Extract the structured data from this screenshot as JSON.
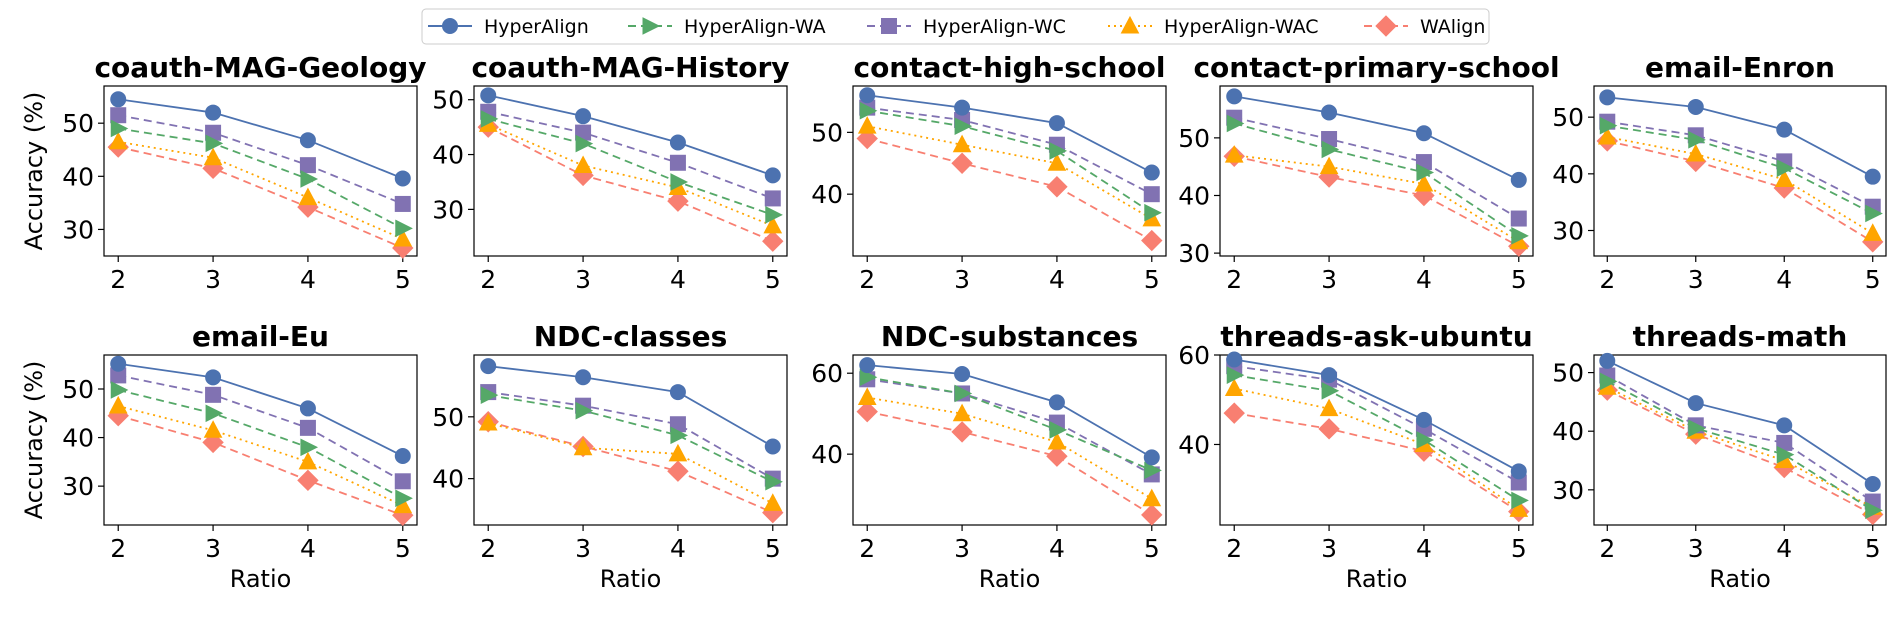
{
  "legend": {
    "position": "top-center",
    "entries": [
      {
        "name": "HyperAlign",
        "color": "#4c72b0",
        "marker": "circle",
        "line": "solid"
      },
      {
        "name": "HyperAlign-WA",
        "color": "#55a868",
        "marker": "triangle-right",
        "line": "dashed"
      },
      {
        "name": "HyperAlign-WC",
        "color": "#8172b2",
        "marker": "square",
        "line": "dashed"
      },
      {
        "name": "HyperAlign-WAC",
        "color": "#ffa500",
        "marker": "triangle-up",
        "line": "dotted"
      },
      {
        "name": "WAlign",
        "color": "#f87f71",
        "marker": "diamond",
        "line": "dashed"
      }
    ]
  },
  "chart_data": [
    {
      "type": "line",
      "title": "coauth-MAG-Geology",
      "xlabel": "",
      "ylabel": "Accuracy (%)",
      "x": [
        2,
        3,
        4,
        5
      ],
      "ylim": [
        25,
        57
      ],
      "yticks": [
        30,
        40,
        50
      ],
      "grid": false,
      "series": [
        {
          "name": "HyperAlign",
          "values": [
            54.5,
            52.0,
            46.8,
            39.6
          ]
        },
        {
          "name": "HyperAlign-WA",
          "values": [
            49.0,
            46.2,
            39.5,
            30.2
          ]
        },
        {
          "name": "HyperAlign-WC",
          "values": [
            51.5,
            48.2,
            42.1,
            34.8
          ]
        },
        {
          "name": "HyperAlign-WAC",
          "values": [
            46.5,
            43.5,
            36.0,
            28.2
          ]
        },
        {
          "name": "WAlign",
          "values": [
            45.5,
            41.5,
            34.2,
            26.5
          ]
        }
      ]
    },
    {
      "type": "line",
      "title": "coauth-MAG-History",
      "xlabel": "",
      "ylabel": "",
      "x": [
        2,
        3,
        4,
        5
      ],
      "ylim": [
        21.5,
        52.5
      ],
      "yticks": [
        30,
        40,
        50
      ],
      "grid": false,
      "series": [
        {
          "name": "HyperAlign",
          "values": [
            50.8,
            47.0,
            42.2,
            36.2
          ]
        },
        {
          "name": "HyperAlign-WA",
          "values": [
            46.5,
            42.0,
            35.0,
            29.0
          ]
        },
        {
          "name": "HyperAlign-WC",
          "values": [
            47.8,
            44.0,
            38.5,
            32.0
          ]
        },
        {
          "name": "HyperAlign-WAC",
          "values": [
            45.5,
            38.0,
            34.0,
            27.0
          ]
        },
        {
          "name": "WAlign",
          "values": [
            45.0,
            36.2,
            31.5,
            24.2
          ]
        }
      ]
    },
    {
      "type": "line",
      "title": "contact-high-school",
      "xlabel": "",
      "ylabel": "",
      "x": [
        2,
        3,
        4,
        5
      ],
      "ylim": [
        30,
        57.5
      ],
      "yticks": [
        40,
        50
      ],
      "grid": false,
      "series": [
        {
          "name": "HyperAlign",
          "values": [
            56.0,
            54.0,
            51.5,
            43.5
          ]
        },
        {
          "name": "HyperAlign-WA",
          "values": [
            53.5,
            51.0,
            47.0,
            37.0
          ]
        },
        {
          "name": "HyperAlign-WC",
          "values": [
            54.0,
            52.0,
            48.0,
            40.0
          ]
        },
        {
          "name": "HyperAlign-WAC",
          "values": [
            51.0,
            48.0,
            45.0,
            36.0
          ]
        },
        {
          "name": "WAlign",
          "values": [
            49.0,
            45.0,
            41.2,
            32.5
          ]
        }
      ]
    },
    {
      "type": "line",
      "title": "contact-primary-school",
      "xlabel": "",
      "ylabel": "",
      "x": [
        2,
        3,
        4,
        5
      ],
      "ylim": [
        29.5,
        59
      ],
      "yticks": [
        30,
        40,
        50
      ],
      "grid": false,
      "series": [
        {
          "name": "HyperAlign",
          "values": [
            57.2,
            54.4,
            50.8,
            42.7
          ]
        },
        {
          "name": "HyperAlign-WA",
          "values": [
            52.5,
            48.0,
            44.0,
            33.0
          ]
        },
        {
          "name": "HyperAlign-WC",
          "values": [
            53.5,
            49.8,
            45.8,
            36.0
          ]
        },
        {
          "name": "HyperAlign-WAC",
          "values": [
            47.0,
            45.0,
            42.0,
            32.0
          ]
        },
        {
          "name": "WAlign",
          "values": [
            46.8,
            43.2,
            40.0,
            31.2
          ]
        }
      ]
    },
    {
      "type": "line",
      "title": "email-Enron",
      "xlabel": "",
      "ylabel": "",
      "x": [
        2,
        3,
        4,
        5
      ],
      "ylim": [
        25.5,
        55.5
      ],
      "yticks": [
        30,
        40,
        50
      ],
      "grid": false,
      "series": [
        {
          "name": "HyperAlign",
          "values": [
            53.5,
            51.8,
            47.8,
            39.5
          ]
        },
        {
          "name": "HyperAlign-WA",
          "values": [
            48.5,
            46.0,
            41.0,
            33.0
          ]
        },
        {
          "name": "HyperAlign-WC",
          "values": [
            49.2,
            46.8,
            42.2,
            34.2
          ]
        },
        {
          "name": "HyperAlign-WAC",
          "values": [
            46.5,
            43.5,
            39.0,
            29.5
          ]
        },
        {
          "name": "WAlign",
          "values": [
            45.8,
            42.2,
            37.5,
            28.0
          ]
        }
      ]
    },
    {
      "type": "line",
      "title": "email-Eu",
      "xlabel": "Ratio",
      "ylabel": "Accuracy (%)",
      "x": [
        2,
        3,
        4,
        5
      ],
      "ylim": [
        22,
        57
      ],
      "yticks": [
        30,
        40,
        50
      ],
      "grid": false,
      "series": [
        {
          "name": "HyperAlign",
          "values": [
            55.2,
            52.4,
            46.0,
            36.2
          ]
        },
        {
          "name": "HyperAlign-WA",
          "values": [
            49.8,
            45.0,
            38.0,
            27.5
          ]
        },
        {
          "name": "HyperAlign-WC",
          "values": [
            52.8,
            48.8,
            42.0,
            31.0
          ]
        },
        {
          "name": "HyperAlign-WAC",
          "values": [
            46.5,
            41.5,
            35.0,
            26.0
          ]
        },
        {
          "name": "WAlign",
          "values": [
            44.5,
            39.0,
            31.2,
            24.0
          ]
        }
      ]
    },
    {
      "type": "line",
      "title": "NDC-classes",
      "xlabel": "Ratio",
      "ylabel": "",
      "x": [
        2,
        3,
        4,
        5
      ],
      "ylim": [
        32.5,
        60
      ],
      "yticks": [
        40,
        50
      ],
      "grid": false,
      "series": [
        {
          "name": "HyperAlign",
          "values": [
            58.2,
            56.4,
            54.0,
            45.2
          ]
        },
        {
          "name": "HyperAlign-WA",
          "values": [
            53.5,
            51.0,
            47.0,
            39.5
          ]
        },
        {
          "name": "HyperAlign-WC",
          "values": [
            54.0,
            51.8,
            48.8,
            40.0
          ]
        },
        {
          "name": "HyperAlign-WAC",
          "values": [
            49.0,
            45.0,
            44.0,
            36.0
          ]
        },
        {
          "name": "WAlign",
          "values": [
            49.2,
            45.2,
            41.2,
            34.5
          ]
        }
      ]
    },
    {
      "type": "line",
      "title": "NDC-substances",
      "xlabel": "Ratio",
      "ylabel": "",
      "x": [
        2,
        3,
        4,
        5
      ],
      "ylim": [
        22.5,
        64.5
      ],
      "yticks": [
        40,
        60
      ],
      "grid": false,
      "series": [
        {
          "name": "HyperAlign",
          "values": [
            62.0,
            59.8,
            52.8,
            39.2
          ]
        },
        {
          "name": "HyperAlign-WA",
          "values": [
            59.0,
            55.0,
            46.0,
            36.0
          ]
        },
        {
          "name": "HyperAlign-WC",
          "values": [
            58.5,
            55.0,
            47.8,
            35.0
          ]
        },
        {
          "name": "HyperAlign-WAC",
          "values": [
            54.0,
            50.0,
            43.0,
            29.0
          ]
        },
        {
          "name": "WAlign",
          "values": [
            50.5,
            45.5,
            39.5,
            25.0
          ]
        }
      ]
    },
    {
      "type": "line",
      "title": "threads-ask-ubuntu",
      "xlabel": "Ratio",
      "ylabel": "",
      "x": [
        2,
        3,
        4,
        5
      ],
      "ylim": [
        22,
        60
      ],
      "yticks": [
        40,
        60
      ],
      "grid": false,
      "series": [
        {
          "name": "HyperAlign",
          "values": [
            59.0,
            55.5,
            45.5,
            34.0
          ]
        },
        {
          "name": "HyperAlign-WA",
          "values": [
            55.5,
            52.0,
            41.0,
            27.5
          ]
        },
        {
          "name": "HyperAlign-WC",
          "values": [
            57.5,
            54.5,
            43.5,
            31.5
          ]
        },
        {
          "name": "HyperAlign-WAC",
          "values": [
            52.5,
            48.0,
            40.0,
            25.5
          ]
        },
        {
          "name": "WAlign",
          "values": [
            47.0,
            43.5,
            38.5,
            25.0
          ]
        }
      ]
    },
    {
      "type": "line",
      "title": "threads-math",
      "xlabel": "Ratio",
      "ylabel": "",
      "x": [
        2,
        3,
        4,
        5
      ],
      "ylim": [
        24,
        53
      ],
      "yticks": [
        30,
        40,
        50
      ],
      "grid": false,
      "series": [
        {
          "name": "HyperAlign",
          "values": [
            52.0,
            44.8,
            41.0,
            31.0
          ]
        },
        {
          "name": "HyperAlign-WA",
          "values": [
            48.5,
            40.5,
            36.0,
            26.5
          ]
        },
        {
          "name": "HyperAlign-WC",
          "values": [
            49.5,
            41.0,
            38.0,
            28.0
          ]
        },
        {
          "name": "HyperAlign-WAC",
          "values": [
            47.5,
            40.0,
            35.0,
            27.0
          ]
        },
        {
          "name": "WAlign",
          "values": [
            47.0,
            39.5,
            33.8,
            25.8
          ]
        }
      ]
    }
  ]
}
